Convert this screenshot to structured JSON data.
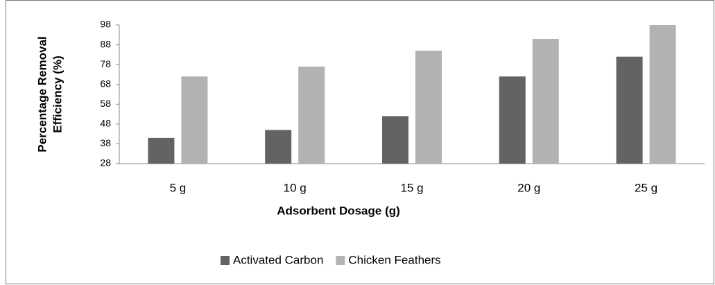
{
  "chart_data": {
    "type": "bar",
    "xlabel": "Adsorbent Dosage (g)",
    "ylabel": [
      "Percentage Removal",
      "Efficiency (%)"
    ],
    "categories": [
      "5 g",
      "10 g",
      "15 g",
      "20 g",
      "25 g"
    ],
    "series": [
      {
        "name": "Activated Carbon",
        "color": "#636363",
        "values": [
          41,
          45,
          52,
          72,
          82
        ]
      },
      {
        "name": "Chicken Feathers",
        "color": "#b2b2b2",
        "values": [
          72,
          77,
          85,
          91,
          98
        ]
      }
    ],
    "ylim": [
      28,
      98
    ],
    "yticks": [
      28,
      38,
      48,
      58,
      68,
      78,
      88,
      98
    ],
    "grid": false,
    "legend": "bottom"
  }
}
